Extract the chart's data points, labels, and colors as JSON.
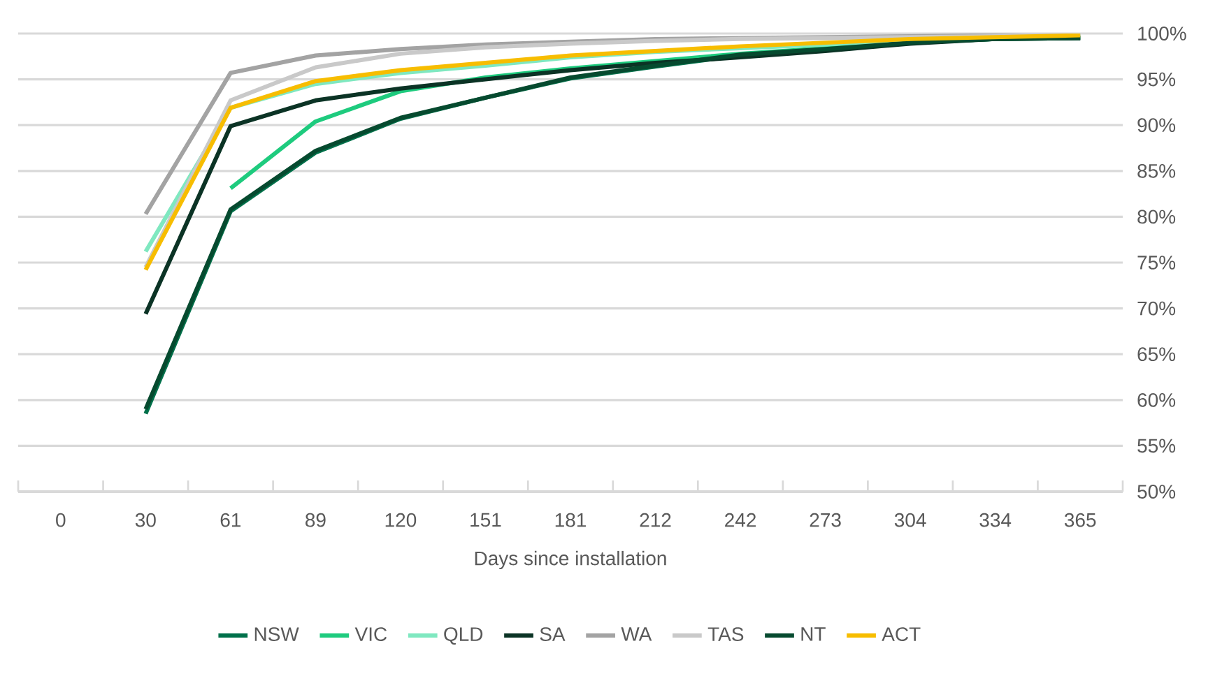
{
  "chart_data": {
    "type": "line",
    "xlabel": "Days since installation",
    "categories": [
      "0",
      "30",
      "61",
      "89",
      "120",
      "151",
      "181",
      "212",
      "242",
      "273",
      "304",
      "334",
      "365"
    ],
    "ylim": [
      50,
      100
    ],
    "yticks": [
      {
        "value": 50,
        "label": "50%"
      },
      {
        "value": 55,
        "label": "55%"
      },
      {
        "value": 60,
        "label": "60%"
      },
      {
        "value": 65,
        "label": "65%"
      },
      {
        "value": 70,
        "label": "70%"
      },
      {
        "value": 75,
        "label": "75%"
      },
      {
        "value": 80,
        "label": "80%"
      },
      {
        "value": 85,
        "label": "85%"
      },
      {
        "value": 90,
        "label": "90%"
      },
      {
        "value": 95,
        "label": "95%"
      },
      {
        "value": 100,
        "label": "100%"
      }
    ],
    "grid": "y",
    "legend": "bottom",
    "marker": "none",
    "line_style": "solid",
    "series": [
      {
        "name": "NSW",
        "color": "#00704a",
        "values": [
          null,
          58.5,
          80.6,
          87,
          90.7,
          93,
          95.1,
          96.4,
          97.6,
          98.3,
          99,
          99.4,
          99.5
        ]
      },
      {
        "name": "VIC",
        "color": "#1ecb7e",
        "values": [
          null,
          null,
          83.1,
          90.4,
          93.7,
          95.2,
          96.2,
          97,
          97.8,
          98.4,
          99,
          99.4,
          99.6
        ]
      },
      {
        "name": "QLD",
        "color": "#7fe8c0",
        "values": [
          null,
          76.2,
          91.9,
          94.5,
          95.7,
          96.5,
          97.4,
          98,
          98.4,
          98.8,
          99.3,
          99.5,
          99.8
        ]
      },
      {
        "name": "SA",
        "color": "#0b3325",
        "values": [
          null,
          69.4,
          89.9,
          92.7,
          94,
          95,
          96,
          96.8,
          97.4,
          98.1,
          98.9,
          99.4,
          99.5
        ]
      },
      {
        "name": "WA",
        "color": "#a3a3a3",
        "values": [
          null,
          80.3,
          95.7,
          97.6,
          98.3,
          98.8,
          99.1,
          99.4,
          99.5,
          99.6,
          99.7,
          99.8,
          99.9
        ]
      },
      {
        "name": "TAS",
        "color": "#c9c9c9",
        "values": [
          null,
          74.5,
          92.7,
          96.3,
          97.8,
          98.5,
          98.9,
          99.2,
          99.4,
          99.5,
          99.6,
          99.7,
          99.9
        ]
      },
      {
        "name": "NT",
        "color": "#064a2f",
        "values": [
          null,
          59,
          80.8,
          87.2,
          90.8,
          93,
          95.2,
          96.5,
          97.7,
          98.3,
          99,
          99.4,
          99.5
        ]
      },
      {
        "name": "ACT",
        "color": "#f7bd00",
        "values": [
          null,
          74.2,
          91.9,
          94.8,
          96,
          96.8,
          97.6,
          98.1,
          98.6,
          99,
          99.4,
          99.6,
          99.8
        ]
      }
    ]
  }
}
